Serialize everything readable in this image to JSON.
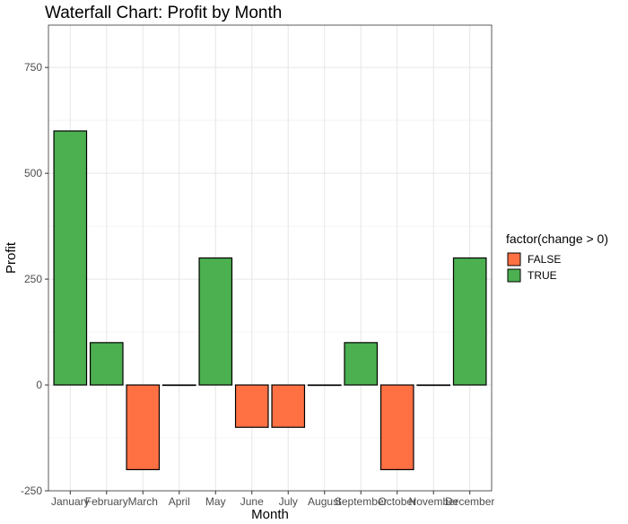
{
  "chart_data": {
    "type": "bar",
    "title": "Waterfall Chart: Profit by Month",
    "xlabel": "Month",
    "ylabel": "Profit",
    "categories": [
      "January",
      "February",
      "March",
      "April",
      "May",
      "June",
      "July",
      "August",
      "September",
      "October",
      "November",
      "December"
    ],
    "values": [
      600,
      100,
      -200,
      0,
      300,
      -100,
      -100,
      0,
      100,
      -200,
      0,
      300
    ],
    "ylim": [
      -250,
      850
    ],
    "yticks": [
      -250,
      0,
      250,
      500,
      750
    ],
    "grid": true,
    "legend": {
      "title": "factor(change > 0)",
      "placement": "right",
      "entries": [
        {
          "label": "FALSE",
          "color": "#FF7043"
        },
        {
          "label": "TRUE",
          "color": "#4CAF50"
        }
      ]
    }
  }
}
